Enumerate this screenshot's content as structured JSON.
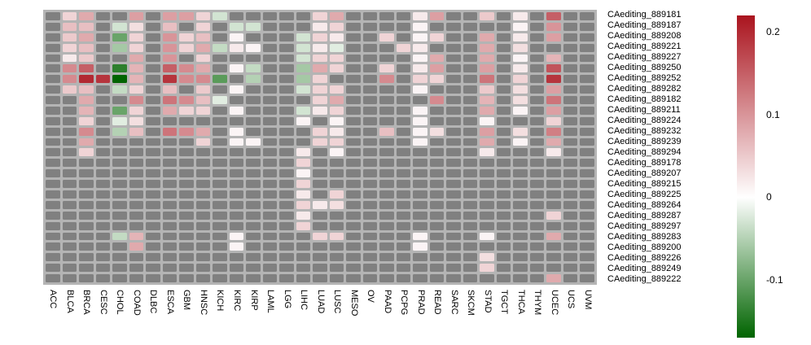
{
  "chart_data": {
    "type": "heatmap",
    "title": "",
    "columns": [
      "ACC",
      "BLCA",
      "BRCA",
      "CESC",
      "CHOL",
      "COAD",
      "DLBC",
      "ESCA",
      "GBM",
      "HNSC",
      "KICH",
      "KIRC",
      "KIRP",
      "LAML",
      "LGG",
      "LIHC",
      "LUAD",
      "LUSC",
      "MESO",
      "OV",
      "PAAD",
      "PCPG",
      "PRAD",
      "READ",
      "SARC",
      "SKCM",
      "STAD",
      "TGCT",
      "THCA",
      "THYM",
      "UCEC",
      "UCS",
      "UVM"
    ],
    "rows": [
      "CAediting_889181",
      "CAediting_889187",
      "CAediting_889208",
      "CAediting_889221",
      "CAediting_889227",
      "CAediting_889250",
      "CAediting_889252",
      "CAediting_889282",
      "CAediting_889182",
      "CAediting_889211",
      "CAediting_889224",
      "CAediting_889232",
      "CAediting_889239",
      "CAediting_889294",
      "CAediting_889178",
      "CAediting_889207",
      "CAediting_889215",
      "CAediting_889225",
      "CAediting_889264",
      "CAediting_889287",
      "CAediting_889297",
      "CAediting_889283",
      "CAediting_889200",
      "CAediting_889226",
      "CAediting_889249",
      "CAediting_889222"
    ],
    "values": [
      [
        null,
        0.04,
        0.08,
        null,
        null,
        0.09,
        null,
        0.09,
        0.09,
        0.04,
        -0.03,
        null,
        null,
        null,
        null,
        null,
        0.04,
        0.08,
        null,
        null,
        null,
        null,
        0.02,
        0.09,
        null,
        null,
        0.05,
        null,
        0.02,
        null,
        0.15,
        null,
        null
      ],
      [
        null,
        0.06,
        0.06,
        null,
        -0.03,
        0.03,
        null,
        0.06,
        null,
        0.04,
        null,
        -0.03,
        -0.03,
        null,
        null,
        null,
        0.02,
        0.04,
        null,
        null,
        null,
        null,
        0.01,
        null,
        null,
        null,
        null,
        null,
        0.01,
        null,
        0.1,
        null,
        null
      ],
      [
        null,
        0.05,
        0.08,
        null,
        -0.1,
        0.04,
        null,
        0.1,
        0.04,
        0.06,
        null,
        0.01,
        null,
        null,
        null,
        -0.03,
        0.04,
        0.02,
        null,
        null,
        0.04,
        null,
        0.01,
        0.04,
        null,
        null,
        0.08,
        null,
        0.02,
        null,
        0.09,
        null,
        null
      ],
      [
        null,
        0.04,
        0.06,
        null,
        -0.06,
        0.04,
        null,
        0.1,
        0.04,
        0.08,
        -0.04,
        0.02,
        0.01,
        null,
        null,
        -0.03,
        0.02,
        -0.02,
        null,
        null,
        null,
        0.04,
        0.02,
        null,
        null,
        null,
        0.08,
        null,
        0.03,
        null,
        null,
        null,
        null
      ],
      [
        null,
        0.02,
        0.05,
        null,
        null,
        0.08,
        null,
        0.1,
        null,
        0.04,
        null,
        null,
        null,
        null,
        null,
        -0.03,
        0.04,
        0.04,
        null,
        null,
        null,
        null,
        0.01,
        0.08,
        null,
        null,
        0.08,
        null,
        0.01,
        null,
        0.07,
        null,
        null
      ],
      [
        null,
        0.11,
        0.15,
        null,
        -0.14,
        0.07,
        null,
        0.15,
        0.11,
        0.08,
        null,
        0.01,
        -0.04,
        null,
        null,
        -0.06,
        0.08,
        0.04,
        null,
        null,
        0.04,
        null,
        0.02,
        0.09,
        null,
        null,
        0.09,
        null,
        0.02,
        null,
        0.16,
        null,
        null
      ],
      [
        null,
        0.11,
        0.2,
        0.19,
        -0.17,
        0.07,
        null,
        0.19,
        0.11,
        0.11,
        -0.11,
        null,
        -0.05,
        null,
        null,
        -0.06,
        0.04,
        null,
        null,
        null,
        0.11,
        null,
        0.04,
        0.04,
        null,
        null,
        0.13,
        null,
        0.04,
        null,
        0.19,
        null,
        null
      ],
      [
        null,
        0.05,
        0.06,
        null,
        -0.04,
        0.04,
        null,
        0.06,
        null,
        0.05,
        null,
        0.01,
        null,
        null,
        null,
        -0.03,
        0.04,
        0.04,
        null,
        null,
        null,
        null,
        0.01,
        null,
        null,
        null,
        0.05,
        null,
        0.03,
        null,
        0.09,
        null,
        null
      ],
      [
        null,
        null,
        0.08,
        null,
        null,
        0.11,
        null,
        0.13,
        0.11,
        0.06,
        -0.02,
        null,
        null,
        null,
        null,
        null,
        0.04,
        0.08,
        null,
        null,
        null,
        null,
        null,
        0.11,
        null,
        null,
        0.07,
        null,
        0.03,
        null,
        0.13,
        null,
        null
      ],
      [
        null,
        null,
        0.07,
        null,
        -0.1,
        0.04,
        null,
        0.08,
        0.04,
        0.04,
        null,
        0.01,
        null,
        null,
        null,
        -0.03,
        0.02,
        0.04,
        null,
        null,
        null,
        null,
        0.01,
        null,
        null,
        null,
        0.08,
        null,
        0.01,
        null,
        0.09,
        null,
        null
      ],
      [
        null,
        null,
        0.04,
        null,
        -0.02,
        0.03,
        null,
        null,
        null,
        null,
        null,
        null,
        null,
        null,
        null,
        0.01,
        null,
        0.01,
        null,
        null,
        null,
        null,
        0.01,
        null,
        null,
        null,
        0.01,
        null,
        null,
        null,
        0.04,
        null,
        null
      ],
      [
        null,
        null,
        0.11,
        null,
        -0.05,
        0.06,
        null,
        0.13,
        0.11,
        0.08,
        null,
        0.01,
        null,
        null,
        null,
        null,
        0.04,
        0.02,
        null,
        null,
        0.06,
        null,
        0.01,
        0.03,
        null,
        null,
        0.09,
        null,
        0.03,
        null,
        0.12,
        null,
        null
      ],
      [
        null,
        null,
        0.08,
        null,
        null,
        null,
        null,
        null,
        null,
        0.04,
        null,
        0.01,
        0.01,
        null,
        null,
        null,
        0.04,
        0.04,
        null,
        null,
        null,
        null,
        0.01,
        null,
        null,
        null,
        0.08,
        null,
        0.01,
        null,
        0.08,
        null,
        null
      ],
      [
        null,
        null,
        0.04,
        null,
        null,
        null,
        null,
        null,
        null,
        null,
        null,
        null,
        null,
        null,
        null,
        0.02,
        null,
        0.01,
        null,
        null,
        null,
        null,
        null,
        null,
        null,
        null,
        0.02,
        null,
        null,
        null,
        0.02,
        null,
        null
      ],
      [
        null,
        null,
        null,
        null,
        null,
        null,
        null,
        null,
        null,
        null,
        null,
        null,
        null,
        null,
        null,
        0.04,
        null,
        null,
        null,
        null,
        null,
        null,
        null,
        null,
        null,
        null,
        null,
        null,
        null,
        null,
        null,
        null,
        null
      ],
      [
        null,
        null,
        null,
        null,
        null,
        null,
        null,
        null,
        null,
        null,
        null,
        null,
        null,
        null,
        null,
        0.01,
        null,
        null,
        null,
        null,
        null,
        null,
        null,
        null,
        null,
        null,
        null,
        null,
        null,
        null,
        null,
        null,
        null
      ],
      [
        null,
        null,
        null,
        null,
        null,
        null,
        null,
        null,
        null,
        null,
        null,
        null,
        null,
        null,
        null,
        0.04,
        null,
        null,
        null,
        null,
        null,
        null,
        null,
        null,
        null,
        null,
        null,
        null,
        null,
        null,
        null,
        null,
        null
      ],
      [
        null,
        null,
        null,
        null,
        null,
        null,
        null,
        null,
        null,
        null,
        null,
        null,
        null,
        null,
        null,
        0.02,
        null,
        0.04,
        null,
        null,
        null,
        null,
        null,
        null,
        null,
        null,
        null,
        null,
        null,
        null,
        null,
        null,
        null
      ],
      [
        null,
        null,
        null,
        null,
        null,
        null,
        null,
        null,
        null,
        null,
        null,
        null,
        null,
        null,
        null,
        0.04,
        0.02,
        0.03,
        null,
        null,
        null,
        null,
        null,
        null,
        null,
        null,
        null,
        null,
        null,
        null,
        null,
        null,
        null
      ],
      [
        null,
        null,
        null,
        null,
        null,
        null,
        null,
        null,
        null,
        null,
        null,
        null,
        null,
        null,
        null,
        0.02,
        null,
        null,
        null,
        null,
        null,
        null,
        null,
        null,
        null,
        null,
        null,
        null,
        null,
        null,
        0.04,
        null,
        null
      ],
      [
        null,
        null,
        null,
        null,
        null,
        null,
        null,
        null,
        null,
        null,
        null,
        null,
        null,
        null,
        null,
        0.04,
        null,
        null,
        null,
        null,
        null,
        null,
        null,
        null,
        null,
        null,
        null,
        null,
        null,
        null,
        null,
        null,
        null
      ],
      [
        null,
        null,
        null,
        null,
        -0.04,
        0.07,
        null,
        null,
        null,
        null,
        null,
        0.01,
        null,
        null,
        null,
        null,
        0.04,
        0.04,
        null,
        null,
        null,
        null,
        0.01,
        null,
        null,
        null,
        0.01,
        null,
        null,
        null,
        0.08,
        null,
        null
      ],
      [
        null,
        null,
        null,
        null,
        null,
        0.08,
        null,
        null,
        null,
        null,
        null,
        0.01,
        null,
        null,
        null,
        null,
        null,
        null,
        null,
        null,
        null,
        null,
        0.01,
        null,
        null,
        null,
        null,
        null,
        null,
        null,
        null,
        null,
        null
      ],
      [
        null,
        null,
        null,
        null,
        null,
        null,
        null,
        null,
        null,
        null,
        null,
        null,
        null,
        null,
        null,
        null,
        null,
        null,
        null,
        null,
        null,
        null,
        null,
        null,
        null,
        null,
        0.03,
        null,
        null,
        null,
        null,
        null,
        null
      ],
      [
        null,
        null,
        null,
        null,
        null,
        null,
        null,
        null,
        null,
        null,
        null,
        null,
        null,
        null,
        null,
        null,
        null,
        null,
        null,
        null,
        null,
        null,
        null,
        null,
        null,
        null,
        0.04,
        null,
        null,
        null,
        null,
        null,
        null
      ],
      [
        null,
        null,
        null,
        null,
        null,
        null,
        null,
        null,
        null,
        null,
        null,
        null,
        null,
        null,
        null,
        null,
        null,
        null,
        null,
        null,
        null,
        null,
        null,
        null,
        null,
        null,
        null,
        null,
        null,
        null,
        0.08,
        null,
        null
      ]
    ],
    "na_color": "#808080",
    "grid_line_color": "#b4b4b4",
    "colormap": {
      "zero_color": "#FFFFFF",
      "positive_max_color": "#AA141E",
      "positive_max_value": 0.22,
      "negative_min_color": "#006400",
      "negative_min_value": -0.17
    },
    "legend": {
      "position": "right",
      "top_value": 0.22,
      "bottom_value": -0.17,
      "ticks": [
        {
          "value": 0.2,
          "label": "0.2"
        },
        {
          "value": 0.1,
          "label": "0.1"
        },
        {
          "value": 0,
          "label": "0"
        },
        {
          "value": -0.1,
          "label": "-0.1"
        }
      ]
    }
  }
}
